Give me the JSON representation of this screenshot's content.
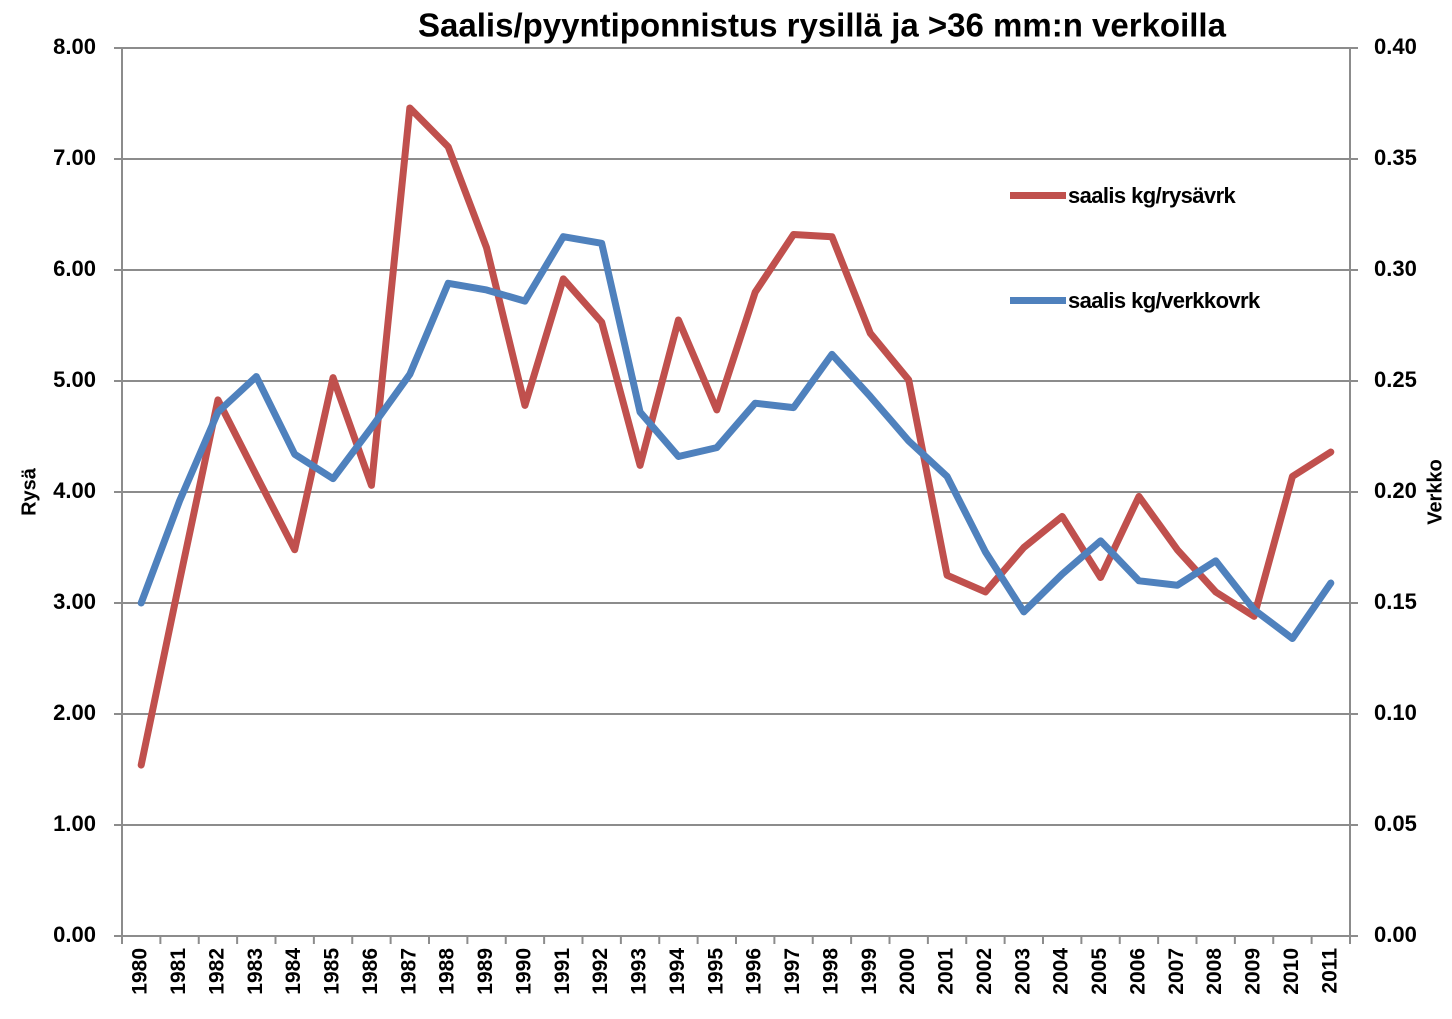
{
  "chart_data": {
    "type": "line",
    "title": "Saalis/pyyntiponnistus rysillä ja >36 mm:n verkoilla",
    "y_label": "Rysä",
    "y2_label": "Verkko",
    "categories": [
      "1980",
      "1981",
      "1982",
      "1983",
      "1984",
      "1985",
      "1986",
      "1987",
      "1988",
      "1989",
      "1990",
      "1991",
      "1992",
      "1993",
      "1994",
      "1995",
      "1996",
      "1997",
      "1998",
      "1999",
      "2000",
      "2001",
      "2002",
      "2003",
      "2004",
      "2005",
      "2006",
      "2007",
      "2008",
      "2009",
      "2010",
      "2011"
    ],
    "series": [
      {
        "name": "saalis kg/rysävrk",
        "color": "#c0504d",
        "axis": "y",
        "values": [
          1.54,
          3.2,
          4.83,
          4.15,
          3.48,
          5.03,
          4.06,
          7.46,
          7.11,
          6.2,
          4.78,
          5.92,
          5.53,
          4.24,
          5.55,
          4.74,
          5.8,
          6.32,
          6.3,
          5.43,
          5.01,
          3.25,
          3.1,
          3.5,
          3.78,
          3.23,
          3.96,
          3.48,
          3.1,
          2.88,
          4.14,
          4.36
        ]
      },
      {
        "name": "saalis kg/verkkovrk",
        "color": "#4f81bd",
        "axis": "y2",
        "values": [
          0.15,
          0.196,
          0.236,
          0.252,
          0.217,
          0.206,
          0.229,
          0.253,
          0.294,
          0.291,
          0.286,
          0.315,
          0.312,
          0.236,
          0.216,
          0.22,
          0.24,
          0.238,
          0.262,
          0.243,
          0.223,
          0.207,
          0.173,
          0.146,
          0.163,
          0.178,
          0.16,
          0.158,
          0.169,
          0.147,
          0.134,
          0.159
        ]
      }
    ],
    "ylim": [
      0,
      8
    ],
    "yticks": [
      {
        "value": 0,
        "label": "0.00"
      },
      {
        "value": 1,
        "label": "1.00"
      },
      {
        "value": 2,
        "label": "2.00"
      },
      {
        "value": 3,
        "label": "3.00"
      },
      {
        "value": 4,
        "label": "4.00"
      },
      {
        "value": 5,
        "label": "5.00"
      },
      {
        "value": 6,
        "label": "6.00"
      },
      {
        "value": 7,
        "label": "7.00"
      },
      {
        "value": 8,
        "label": "8.00"
      }
    ],
    "y2lim": [
      0,
      0.4
    ],
    "y2ticks": [
      {
        "value": 0,
        "label": "0.00"
      },
      0.05,
      {
        "value": 0.1,
        "label": "0.10"
      },
      0.15,
      {
        "value": 0.2,
        "label": "0.20"
      },
      0.25,
      {
        "value": 0.3,
        "label": "0.30"
      },
      0.35,
      {
        "value": 0.4,
        "label": "0.40"
      }
    ],
    "grid": true
  }
}
